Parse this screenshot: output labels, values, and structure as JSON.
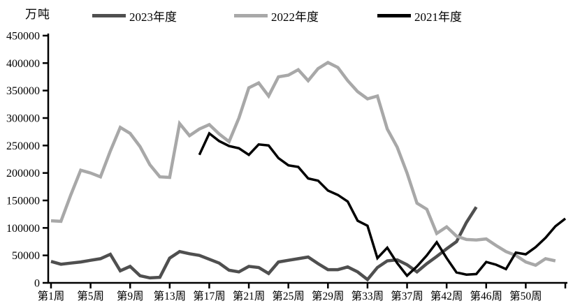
{
  "unit_label": "万吨",
  "chart_data": {
    "type": "line",
    "title": "",
    "ylabel": "万吨",
    "xlabel": "",
    "grid": false,
    "legend_position": "top",
    "y_axis": {
      "min": 0,
      "max": 450000,
      "step": 50000,
      "tick_labels": [
        "0",
        "50000",
        "100000",
        "150000",
        "200000",
        "250000",
        "300000",
        "350000",
        "400000",
        "450000"
      ]
    },
    "x_axis": {
      "total_weeks": 53,
      "tick_every": 4,
      "tick_labels": [
        "第1周",
        "第5周",
        "第9周",
        "第13周",
        "第17周",
        "第21周",
        "第25周",
        "第29周",
        "第33周",
        "第37周",
        "第42周",
        "第46周",
        "第50周"
      ]
    },
    "series": [
      {
        "name": "2023年度",
        "color": "#4f4f4f",
        "start_week": 1,
        "values": [
          39000,
          34000,
          36000,
          38000,
          41000,
          44000,
          52000,
          22000,
          30000,
          13000,
          9000,
          10000,
          45000,
          57000,
          53000,
          50000,
          43000,
          36000,
          23000,
          20000,
          30000,
          28000,
          17000,
          38000,
          41000,
          44000,
          47000,
          35000,
          24000,
          24000,
          29000,
          20000,
          6000,
          28000,
          40000,
          42000,
          33000,
          20000,
          35000,
          48000,
          62000,
          75000,
          110000,
          138000
        ]
      },
      {
        "name": "2022年度",
        "color": "#a8a8a8",
        "start_week": 1,
        "values": [
          113000,
          112000,
          160000,
          205000,
          200000,
          193000,
          240000,
          283000,
          272000,
          248000,
          215000,
          193000,
          192000,
          290000,
          268000,
          280000,
          288000,
          271000,
          257000,
          300000,
          355000,
          364000,
          340000,
          375000,
          378000,
          388000,
          368000,
          390000,
          401000,
          392000,
          368000,
          348000,
          335000,
          340000,
          280000,
          247000,
          200000,
          145000,
          134000,
          90000,
          102000,
          85000,
          79000,
          78000,
          80000,
          68000,
          57000,
          50000,
          38000,
          32000,
          44000,
          40000
        ]
      },
      {
        "name": "2021年度",
        "color": "#000000",
        "start_week": 16,
        "values": [
          233000,
          272000,
          258000,
          249000,
          245000,
          233000,
          252000,
          250000,
          227000,
          214000,
          211000,
          190000,
          186000,
          168000,
          160000,
          148000,
          113000,
          104000,
          45000,
          64000,
          36000,
          13000,
          30000,
          50000,
          74000,
          45000,
          19000,
          15000,
          16000,
          38000,
          33000,
          25000,
          55000,
          52000,
          65000,
          82000,
          103000,
          117000
        ]
      }
    ]
  }
}
